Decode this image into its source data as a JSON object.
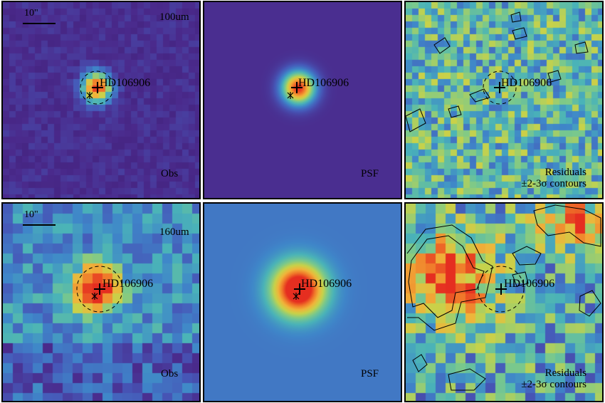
{
  "panels": [
    {
      "row": 0,
      "col": 0,
      "kind": "obs",
      "band_label": "100um",
      "corner_label": "Obs",
      "target_label": "HD106906",
      "scale_label": "10\""
    },
    {
      "row": 0,
      "col": 1,
      "kind": "psf",
      "corner_label": "PSF",
      "target_label": "HD106906"
    },
    {
      "row": 0,
      "col": 2,
      "kind": "residual",
      "corner_label": "Residuals",
      "corner_label2": "±2-3σ contours",
      "target_label": "HD106906"
    },
    {
      "row": 1,
      "col": 0,
      "kind": "obs",
      "band_label": "160um",
      "corner_label": "Obs",
      "target_label": "HD106906",
      "scale_label": "10\""
    },
    {
      "row": 1,
      "col": 1,
      "kind": "psf",
      "corner_label": "PSF",
      "target_label": "HD106906"
    },
    {
      "row": 1,
      "col": 2,
      "kind": "residual",
      "corner_label": "Residuals",
      "corner_label2": "±2-3σ contours",
      "target_label": "HD106906"
    }
  ],
  "colors": {
    "colormap": [
      "#3b1a6e",
      "#4a2a8c",
      "#4658b8",
      "#3f86c9",
      "#4ab3b8",
      "#7cc98a",
      "#c7d24a",
      "#f0b43a",
      "#f07a2a",
      "#e52e20"
    ]
  }
}
